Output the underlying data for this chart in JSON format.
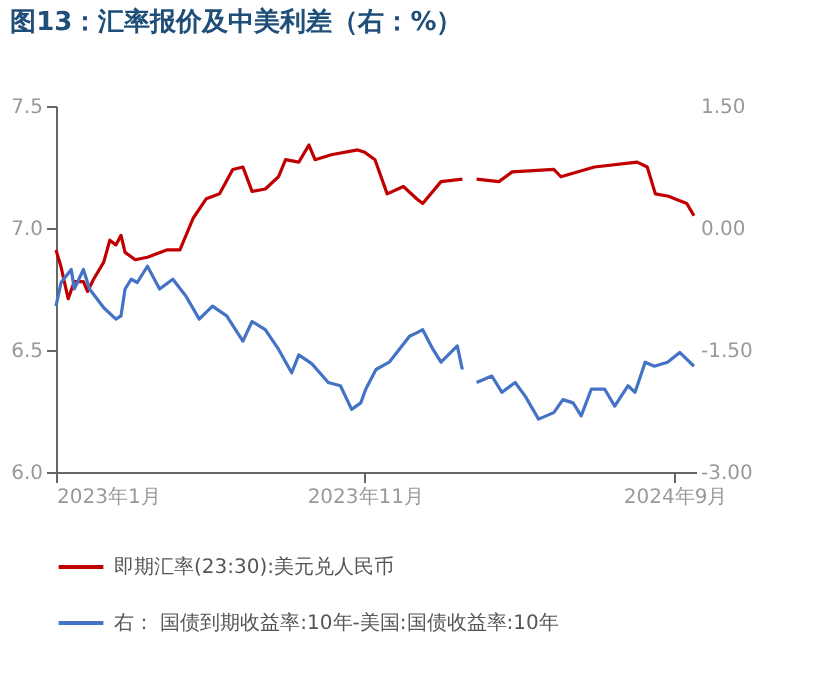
{
  "chart_data": {
    "type": "line",
    "title": "图13：汇率报价及中美利差（右：%）",
    "xlim": [
      "2023-01-01",
      "2024-09-22"
    ],
    "xticks": [
      {
        "value": "2023-01-01",
        "label": "2023年1月"
      },
      {
        "value": "2023-11-01",
        "label": "2023年11月"
      },
      {
        "value": "2024-09-01",
        "label": "2024年9月"
      }
    ],
    "ylim": [
      6.0,
      7.5
    ],
    "yticks": [
      {
        "value": 6.0,
        "label": "6.0"
      },
      {
        "value": 6.5,
        "label": "6.5"
      },
      {
        "value": 7.0,
        "label": "7.0"
      },
      {
        "value": 7.5,
        "label": "7.5"
      }
    ],
    "y2lim": [
      -3.0,
      1.5
    ],
    "y2ticks": [
      {
        "value": 1.5,
        "label": "1.50"
      },
      {
        "value": 0.0,
        "label": "0.00"
      },
      {
        "value": -1.5,
        "label": "-1.50"
      },
      {
        "value": -3.0,
        "label": "-3.00"
      }
    ],
    "grid": false,
    "legend": "bottom",
    "series": [
      {
        "name": "即期汇率(23:30):美元兑人民币",
        "color": "#c00000",
        "axis": "y",
        "x": [
          "2023-01-01",
          "2023-01-06",
          "2023-01-13",
          "2023-01-19",
          "2023-01-28",
          "2023-02-01",
          "2023-02-07",
          "2023-02-17",
          "2023-02-23",
          "2023-03-01",
          "2023-03-06",
          "2023-03-10",
          "2023-03-20",
          "2023-04-01",
          "2023-04-20",
          "2023-05-03",
          "2023-05-16",
          "2023-05-29",
          "2023-06-11",
          "2023-06-24",
          "2023-07-04",
          "2023-07-13",
          "2023-07-26",
          "2023-08-08",
          "2023-08-15",
          "2023-08-28",
          "2023-09-07",
          "2023-09-13",
          "2023-09-29",
          "2023-10-25",
          "2023-11-01",
          "2023-11-11",
          "2023-11-23",
          "2023-12-09",
          "2023-12-22",
          "2023-12-28",
          "2024-01-15",
          "2024-02-05",
          "2024-02-12",
          "2024-02-19",
          "2024-03-12",
          "2024-03-25",
          "2024-05-05",
          "2024-05-12",
          "2024-06-14",
          "2024-07-26",
          "2024-08-05",
          "2024-08-13",
          "2024-08-26",
          "2024-09-01",
          "2024-09-13",
          "2024-09-20"
        ],
        "values": [
          6.91,
          6.84,
          6.71,
          6.78,
          6.78,
          6.74,
          6.79,
          6.86,
          6.95,
          6.93,
          6.97,
          6.9,
          6.87,
          6.88,
          6.91,
          6.91,
          7.04,
          7.12,
          7.14,
          7.24,
          7.25,
          7.15,
          7.16,
          7.21,
          7.28,
          7.27,
          7.34,
          7.28,
          7.3,
          7.32,
          7.31,
          7.28,
          7.14,
          7.17,
          7.12,
          7.1,
          7.19,
          7.2,
          null,
          7.2,
          7.19,
          7.23,
          7.24,
          7.21,
          7.25,
          7.27,
          7.25,
          7.14,
          7.13,
          7.12,
          7.1,
          7.05
        ]
      },
      {
        "name": "右： 国债到期收益率:10年-美国:国债收益率:10年",
        "color": "#4472c4",
        "axis": "y2",
        "x": [
          "2023-01-01",
          "2023-01-06",
          "2023-01-16",
          "2023-01-19",
          "2023-01-28",
          "2023-02-03",
          "2023-02-17",
          "2023-03-01",
          "2023-03-06",
          "2023-03-10",
          "2023-03-16",
          "2023-03-22",
          "2023-04-01",
          "2023-04-13",
          "2023-04-26",
          "2023-05-09",
          "2023-05-22",
          "2023-06-04",
          "2023-06-18",
          "2023-07-04",
          "2023-07-13",
          "2023-07-26",
          "2023-08-08",
          "2023-08-21",
          "2023-08-28",
          "2023-09-10",
          "2023-09-26",
          "2023-10-08",
          "2023-10-19",
          "2023-10-28",
          "2023-11-02",
          "2023-11-12",
          "2023-11-25",
          "2023-12-05",
          "2023-12-15",
          "2023-12-22",
          "2023-12-28",
          "2024-01-07",
          "2024-01-15",
          "2024-01-31",
          "2024-02-05",
          "2024-02-12",
          "2024-02-19",
          "2024-03-05",
          "2024-03-15",
          "2024-03-28",
          "2024-04-07",
          "2024-04-20",
          "2024-05-05",
          "2024-05-14",
          "2024-05-24",
          "2024-06-01",
          "2024-06-11",
          "2024-06-24",
          "2024-07-04",
          "2024-07-17",
          "2024-07-24",
          "2024-08-03",
          "2024-08-12",
          "2024-08-25",
          "2024-09-06",
          "2024-09-20"
        ],
        "values": [
          -0.96,
          -0.67,
          -0.51,
          -0.75,
          -0.51,
          -0.75,
          -0.98,
          -1.12,
          -1.08,
          -0.75,
          -0.63,
          -0.67,
          -0.47,
          -0.75,
          -0.63,
          -0.84,
          -1.12,
          -0.96,
          -1.08,
          -1.39,
          -1.15,
          -1.25,
          -1.49,
          -1.78,
          -1.56,
          -1.67,
          -1.9,
          -1.94,
          -2.23,
          -2.15,
          -1.98,
          -1.74,
          -1.65,
          -1.49,
          -1.33,
          -1.29,
          -1.25,
          -1.49,
          -1.65,
          -1.45,
          -1.74,
          null,
          -1.9,
          -1.82,
          -2.02,
          -1.9,
          -2.07,
          -2.35,
          -2.27,
          -2.11,
          -2.15,
          -2.31,
          -1.98,
          -1.98,
          -2.19,
          -1.94,
          -2.02,
          -1.65,
          -1.7,
          -1.65,
          -1.53,
          -1.7
        ]
      }
    ]
  }
}
